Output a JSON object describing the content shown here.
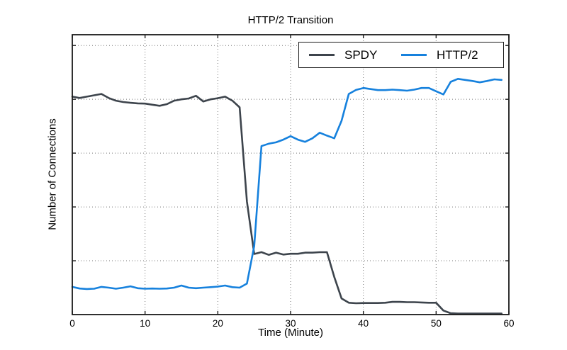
{
  "chart_data": {
    "type": "line",
    "title": "HTTP/2 Transition",
    "xlabel": "Time (Minute)",
    "ylabel": "Number of Connections",
    "xlim": [
      0,
      60
    ],
    "ylim": [
      0,
      104
    ],
    "x_ticks": [
      0,
      10,
      20,
      30,
      40,
      50,
      60
    ],
    "y_tick_labels_visible": false,
    "y_gridlines": [
      20,
      40,
      60,
      80,
      100
    ],
    "grid": "dotted",
    "legend_position": "upper-right-inside",
    "x": [
      0,
      1,
      2,
      3,
      4,
      5,
      6,
      7,
      8,
      9,
      10,
      11,
      12,
      13,
      14,
      15,
      16,
      17,
      18,
      19,
      20,
      21,
      22,
      23,
      24,
      25,
      26,
      27,
      28,
      29,
      30,
      31,
      32,
      33,
      34,
      35,
      36,
      37,
      38,
      39,
      40,
      41,
      42,
      43,
      44,
      45,
      46,
      47,
      48,
      49,
      50,
      51,
      52,
      53,
      54,
      55,
      56,
      57,
      58,
      59
    ],
    "series": [
      {
        "name": "SPDY",
        "color": "#3d444c",
        "values": [
          81,
          80.5,
          81,
          81.5,
          82,
          80.5,
          79.5,
          79,
          78.7,
          78.5,
          78.4,
          78,
          77.6,
          78.2,
          79.5,
          80,
          80.3,
          81.3,
          79.2,
          80,
          80.4,
          81,
          79.5,
          77,
          42,
          22.5,
          23.2,
          22.2,
          23,
          22.3,
          22.6,
          22.6,
          23,
          23,
          23.2,
          23.2,
          14,
          6,
          4.4,
          4.2,
          4.3,
          4.3,
          4.3,
          4.4,
          4.7,
          4.7,
          4.6,
          4.6,
          4.5,
          4.4,
          4.4,
          1.5,
          0.5,
          0.4,
          0.4,
          0.4,
          0.4,
          0.4,
          0.4,
          0.4
        ]
      },
      {
        "name": "HTTP/2",
        "color": "#1681dd",
        "values": [
          10.3,
          9.7,
          9.5,
          9.6,
          10.3,
          10,
          9.6,
          10,
          10.5,
          9.8,
          9.6,
          9.7,
          9.6,
          9.7,
          10,
          10.8,
          10,
          9.8,
          10,
          10.2,
          10.4,
          10.8,
          10.2,
          10,
          11.5,
          25.5,
          62.6,
          63.5,
          64,
          65,
          66.3,
          65,
          64.2,
          65.5,
          67.6,
          66.5,
          65.5,
          72,
          82,
          83.5,
          84.2,
          83.8,
          83.4,
          83.4,
          83.6,
          83.4,
          83.2,
          83.6,
          84.2,
          84.2,
          83,
          81.8,
          86.5,
          87.6,
          87.2,
          86.8,
          86.3,
          86.8,
          87.4,
          87.2
        ]
      }
    ]
  }
}
